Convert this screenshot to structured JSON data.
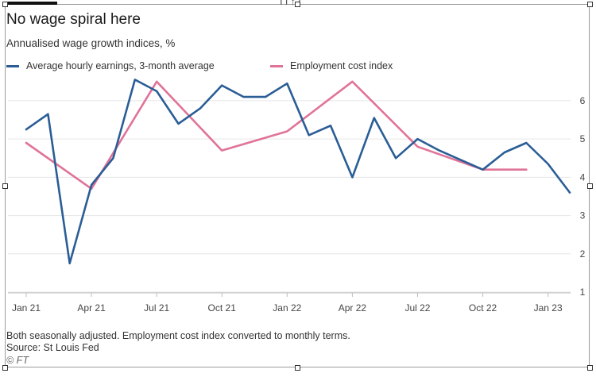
{
  "title": "No wage spiral here",
  "subtitle": "Annualised wage growth indices, %",
  "footnote": "Both seasonally adjusted. Employment cost index converted to monthly terms.",
  "source": "Source: St Louis Fed",
  "credit": "© FT",
  "top_glyph": "IT↑T",
  "colors": {
    "ahe": "#2a5d96",
    "eci": "#e07398",
    "grid": "#e6e6e6",
    "text": "#333333"
  },
  "chart_data": {
    "type": "line",
    "title": "No wage spiral here",
    "subtitle": "Annualised wage growth indices, %",
    "xlabel": "",
    "ylabel": "",
    "x_tick_labels": [
      "Jan 21",
      "Apr 21",
      "Jul 21",
      "Oct 21",
      "Jan 22",
      "Apr 22",
      "Jul 22",
      "Oct 22",
      "Jan 23"
    ],
    "x_ticks": [
      "2021-01",
      "2021-04",
      "2021-07",
      "2021-10",
      "2022-01",
      "2022-04",
      "2022-07",
      "2022-10",
      "2023-01"
    ],
    "y_ticks": [
      1,
      2,
      3,
      4,
      5,
      6
    ],
    "ylim": [
      1,
      6.6
    ],
    "y_axis_side": "right",
    "grid": "horizontal",
    "legend_position": "top-left",
    "series": [
      {
        "name": "Average hourly earnings, 3-month average",
        "color": "#2a5d96",
        "points": [
          [
            "2021-01",
            5.25
          ],
          [
            "2021-02",
            5.65
          ],
          [
            "2021-03",
            1.75
          ],
          [
            "2021-04",
            3.8
          ],
          [
            "2021-05",
            4.5
          ],
          [
            "2021-06",
            6.55
          ],
          [
            "2021-07",
            6.25
          ],
          [
            "2021-08",
            5.4
          ],
          [
            "2021-09",
            5.8
          ],
          [
            "2021-10",
            6.4
          ],
          [
            "2021-11",
            6.1
          ],
          [
            "2021-12",
            6.1
          ],
          [
            "2022-01",
            6.45
          ],
          [
            "2022-02",
            5.1
          ],
          [
            "2022-03",
            5.35
          ],
          [
            "2022-04",
            4.0
          ],
          [
            "2022-05",
            5.55
          ],
          [
            "2022-06",
            4.5
          ],
          [
            "2022-07",
            5.0
          ],
          [
            "2022-08",
            4.7
          ],
          [
            "2022-09",
            4.45
          ],
          [
            "2022-10",
            4.2
          ],
          [
            "2022-11",
            4.65
          ],
          [
            "2022-12",
            4.9
          ],
          [
            "2023-01",
            4.35
          ],
          [
            "2023-02",
            3.6
          ]
        ]
      },
      {
        "name": "Employment cost index",
        "color": "#e07398",
        "points": [
          [
            "2021-01",
            4.9
          ],
          [
            "2021-04",
            3.7
          ],
          [
            "2021-07",
            6.5
          ],
          [
            "2021-10",
            4.7
          ],
          [
            "2022-01",
            5.2
          ],
          [
            "2022-04",
            6.5
          ],
          [
            "2022-07",
            4.8
          ],
          [
            "2022-10",
            4.2
          ],
          [
            "2022-12",
            4.2
          ]
        ]
      }
    ]
  }
}
